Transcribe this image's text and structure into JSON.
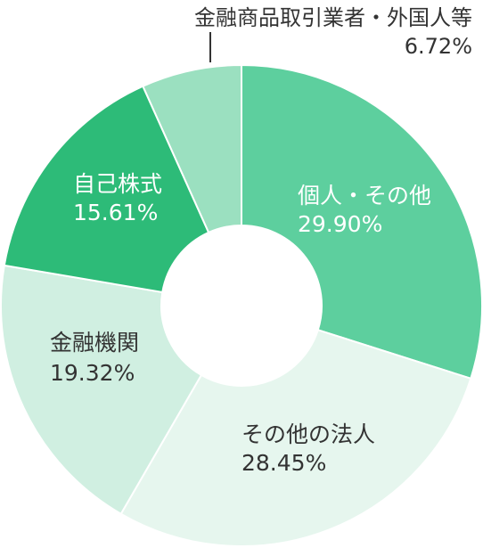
{
  "chart_data": {
    "type": "pie",
    "donut": true,
    "title": "",
    "start_angle_deg": 0,
    "direction": "clockwise",
    "slices": [
      {
        "label": "個人・その他",
        "value_text": "29.90%",
        "value": 29.9,
        "color": "#5dcf9e",
        "text_color": "#ffffff"
      },
      {
        "label": "その他の法人",
        "value_text": "28.45%",
        "value": 28.45,
        "color": "#e6f6ee",
        "text_color": "#333333"
      },
      {
        "label": "金融機関",
        "value_text": "19.32%",
        "value": 19.32,
        "color": "#d0efe1",
        "text_color": "#333333"
      },
      {
        "label": "自己株式",
        "value_text": "15.61%",
        "value": 15.61,
        "color": "#2dbb78",
        "text_color": "#ffffff"
      },
      {
        "label": "金融商品取引業者・外国人等",
        "value_text": "6.72%",
        "value": 6.72,
        "color": "#9be0c0",
        "text_color": "#333333",
        "label_outside": true
      }
    ]
  }
}
